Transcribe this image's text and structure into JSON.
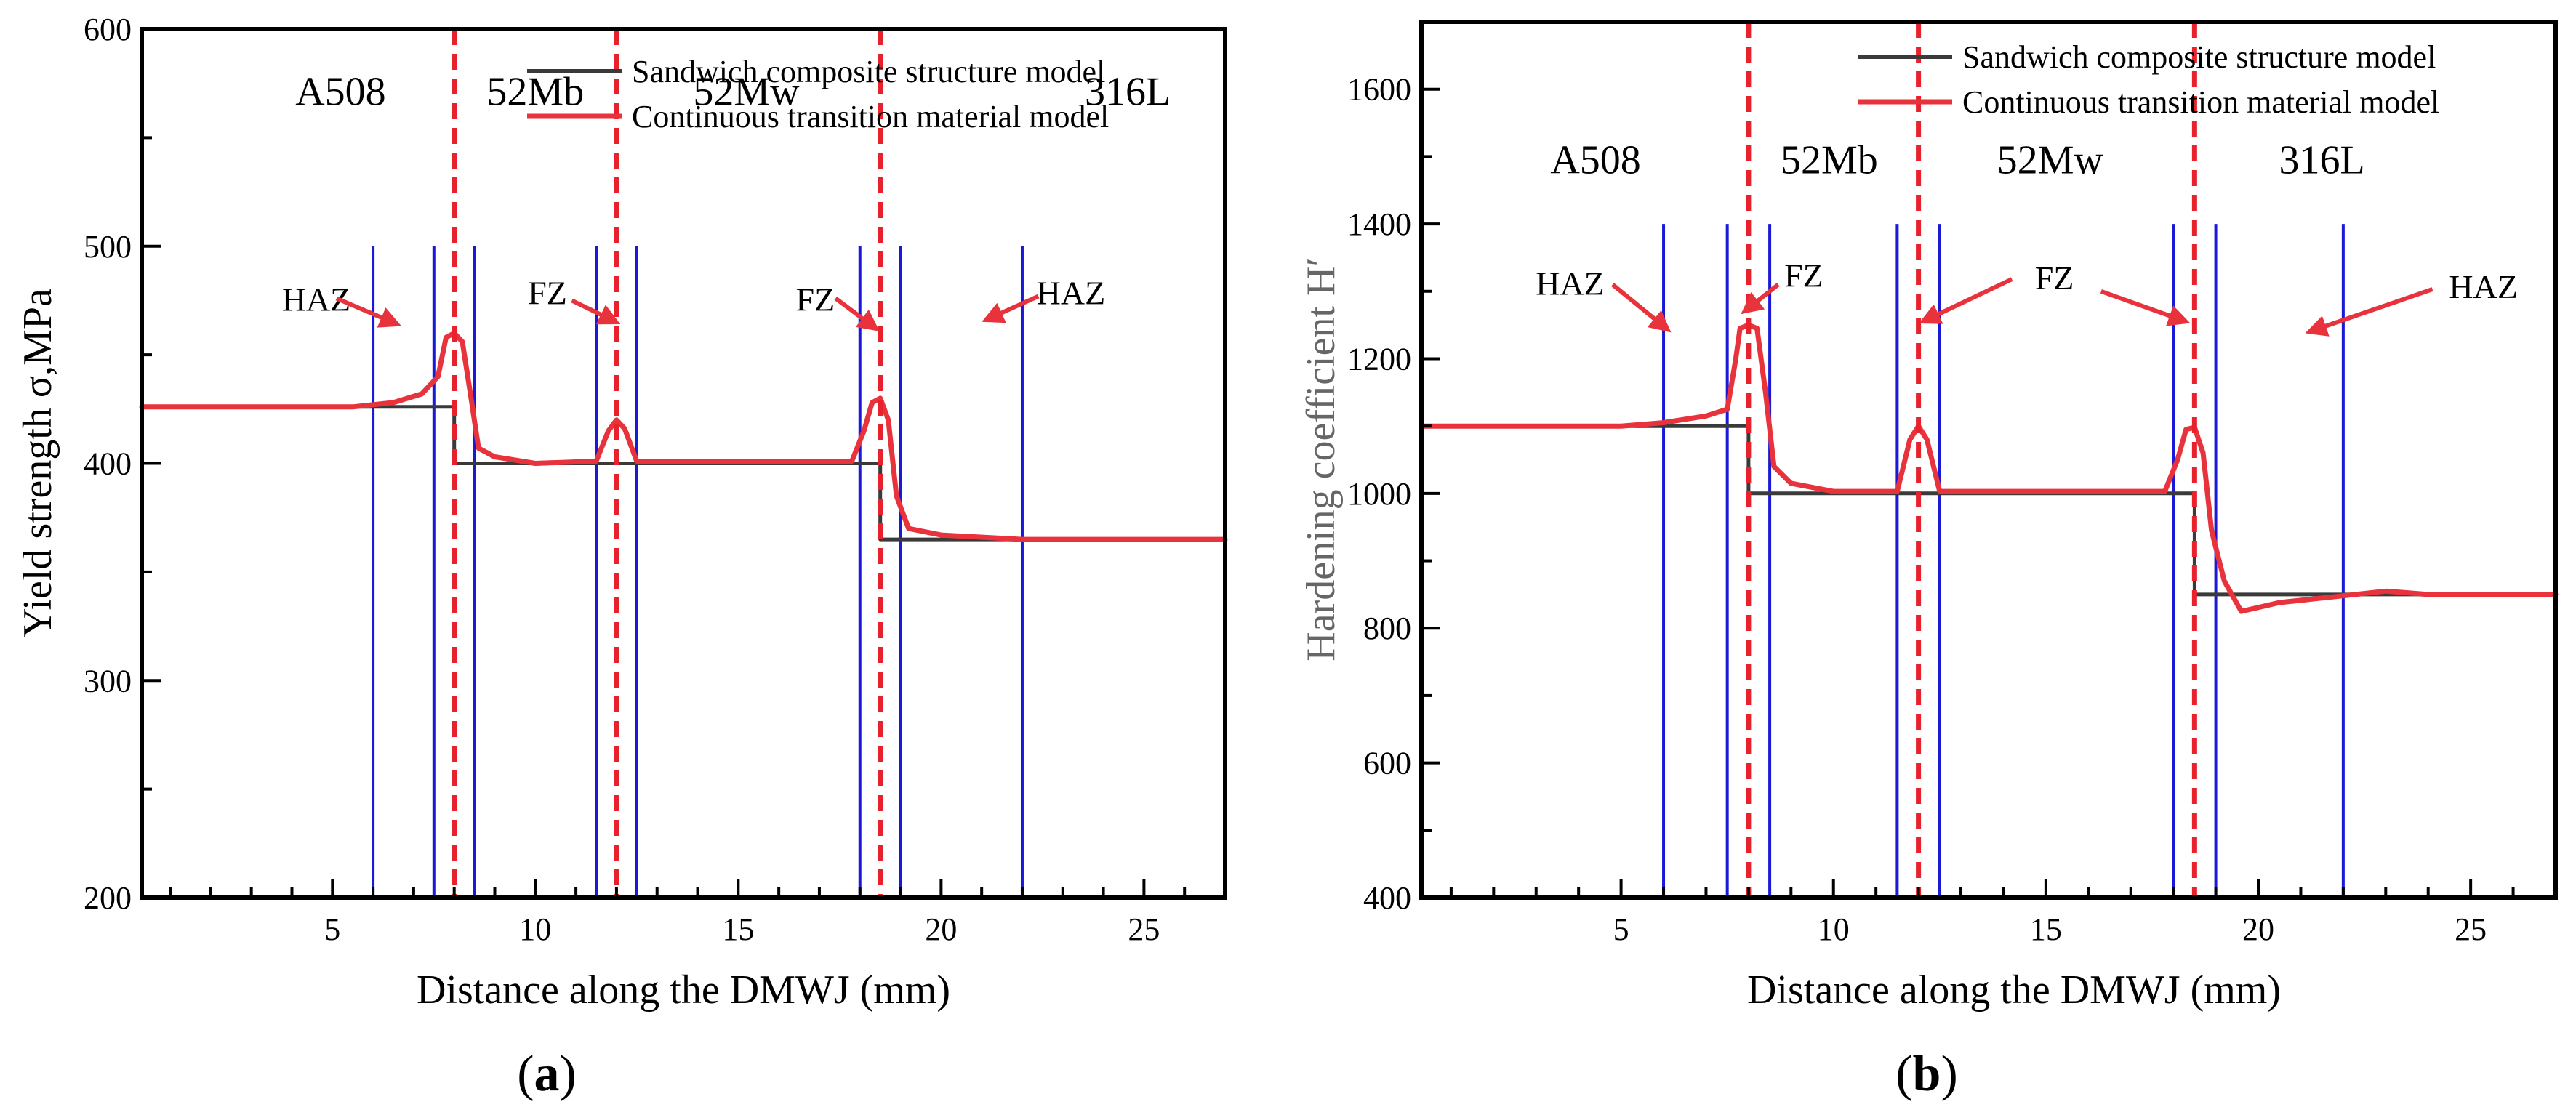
{
  "chart_data": [
    {
      "id": "a",
      "type": "line",
      "panel_label": "(a)",
      "panel_letter": "a",
      "xlabel": "Distance along the DMWJ (mm)",
      "ylabel": "Yield strength σ,MPa",
      "xlim": [
        0.3,
        27
      ],
      "ylim": [
        200,
        600
      ],
      "xticks": [
        5,
        10,
        15,
        20,
        25
      ],
      "yticks": [
        200,
        300,
        400,
        500,
        600
      ],
      "legend": {
        "position": "top-right",
        "entries": [
          {
            "name": "Sandwich composite  structure model",
            "color": "#3a3a3a"
          },
          {
            "name": "Continuous transition material model",
            "color": "#e8323c"
          }
        ]
      },
      "region_labels": [
        {
          "text": "A508",
          "x": 5.2,
          "y": 565
        },
        {
          "text": "52Mb",
          "x": 10,
          "y": 565
        },
        {
          "text": "52Mw",
          "x": 15.2,
          "y": 565
        },
        {
          "text": "316L",
          "x": 24.6,
          "y": 565
        }
      ],
      "interfaces": [
        8,
        12,
        18.5
      ],
      "zone_lines": {
        "positions": [
          6,
          7.5,
          8.5,
          11.5,
          12.5,
          18,
          19,
          22
        ],
        "y_from": 200,
        "y_to": 500
      },
      "annotations": [
        {
          "text": "HAZ",
          "label": [
            4.6,
            475
          ],
          "tail": [
            5.1,
            476
          ],
          "head": [
            6.6,
            464
          ]
        },
        {
          "text": "FZ",
          "label": [
            10.3,
            478
          ],
          "tail": [
            10.9,
            475
          ],
          "head": [
            12.0,
            465
          ]
        },
        {
          "text": "FZ",
          "label": [
            16.9,
            475
          ],
          "tail": [
            17.4,
            476
          ],
          "head": [
            18.4,
            462
          ]
        },
        {
          "text": "HAZ",
          "label": [
            23.2,
            478
          ],
          "tail": [
            22.4,
            477
          ],
          "head": [
            21.1,
            466
          ]
        }
      ],
      "series": [
        {
          "name": "Sandwich composite  structure model",
          "color": "#3a3a3a",
          "x": [
            0.3,
            8,
            8,
            18.5,
            18.5,
            27
          ],
          "y": [
            426,
            426,
            400,
            400,
            365,
            365
          ]
        },
        {
          "name": "Continuous transition material model",
          "color": "#e8323c",
          "x": [
            0.3,
            5.5,
            6.5,
            7.2,
            7.6,
            7.8,
            8.0,
            8.2,
            8.4,
            8.6,
            9.0,
            10.0,
            11.5,
            11.8,
            12.0,
            12.2,
            12.5,
            17.8,
            18.1,
            18.3,
            18.5,
            18.7,
            18.9,
            19.2,
            20,
            22,
            27
          ],
          "y": [
            426,
            426,
            428,
            432,
            440,
            458,
            460,
            456,
            432,
            407,
            403,
            400,
            401,
            415,
            420,
            416,
            401,
            401,
            415,
            428,
            430,
            420,
            385,
            370,
            367,
            365,
            365
          ]
        }
      ]
    },
    {
      "id": "b",
      "type": "line",
      "panel_label": "(b)",
      "panel_letter": "b",
      "xlabel": "Distance along the DMWJ (mm)",
      "ylabel": "Hardening coefficient H′",
      "xlim": [
        0.3,
        27
      ],
      "ylim": [
        400,
        1700
      ],
      "xticks": [
        5,
        10,
        15,
        20,
        25
      ],
      "yticks": [
        400,
        600,
        800,
        1000,
        1200,
        1400,
        1600
      ],
      "legend": {
        "position": "top-right",
        "entries": [
          {
            "name": "Sandwich composite  structure model",
            "color": "#3a3a3a"
          },
          {
            "name": "Continuous transition material model",
            "color": "#e8323c"
          }
        ]
      },
      "region_labels": [
        {
          "text": "A508",
          "x": 4.4,
          "y": 1475
        },
        {
          "text": "52Mb",
          "x": 9.9,
          "y": 1475
        },
        {
          "text": "52Mw",
          "x": 15.1,
          "y": 1475
        },
        {
          "text": "316L",
          "x": 21.5,
          "y": 1475
        }
      ],
      "interfaces": [
        8,
        12,
        18.5
      ],
      "zone_lines": {
        "positions": [
          6,
          7.5,
          8.5,
          11.5,
          12.5,
          18,
          19,
          22
        ],
        "y_from": 400,
        "y_to": 1400
      },
      "annotations": [
        {
          "text": "HAZ",
          "label": [
            3.8,
            1310
          ],
          "tail": [
            4.8,
            1310
          ],
          "head": [
            6.1,
            1243
          ]
        },
        {
          "text": "FZ",
          "label": [
            9.3,
            1322
          ],
          "tail": [
            8.7,
            1310
          ],
          "head": [
            7.9,
            1270
          ]
        },
        {
          "text": "FZ",
          "label": [
            15.2,
            1318
          ],
          "tail": [
            14.2,
            1318
          ],
          "head": [
            12.1,
            1255
          ],
          "tail2": [
            16.3,
            1300
          ],
          "head2": [
            18.3,
            1255
          ]
        },
        {
          "text": "HAZ",
          "label": [
            25.3,
            1305
          ],
          "tail": [
            24.1,
            1303
          ],
          "head": [
            21.2,
            1240
          ]
        }
      ],
      "series": [
        {
          "name": "Sandwich composite  structure model",
          "color": "#3a3a3a",
          "x": [
            0.3,
            8,
            8,
            18.5,
            18.5,
            27
          ],
          "y": [
            1100,
            1100,
            1000,
            1000,
            850,
            850
          ]
        },
        {
          "name": "Continuous transition material model",
          "color": "#e8323c",
          "x": [
            0.3,
            5.0,
            6.0,
            7.0,
            7.5,
            7.7,
            7.8,
            8.0,
            8.2,
            8.4,
            8.6,
            9.0,
            10.0,
            11.5,
            11.8,
            12.0,
            12.2,
            12.5,
            17.8,
            18.1,
            18.3,
            18.5,
            18.7,
            18.9,
            19.2,
            19.6,
            20.5,
            22,
            23,
            24,
            27
          ],
          "y": [
            1100,
            1100,
            1105,
            1115,
            1125,
            1200,
            1245,
            1250,
            1245,
            1150,
            1040,
            1015,
            1003,
            1003,
            1080,
            1100,
            1080,
            1003,
            1003,
            1050,
            1095,
            1098,
            1060,
            945,
            870,
            825,
            838,
            848,
            855,
            850,
            850
          ]
        }
      ]
    }
  ]
}
